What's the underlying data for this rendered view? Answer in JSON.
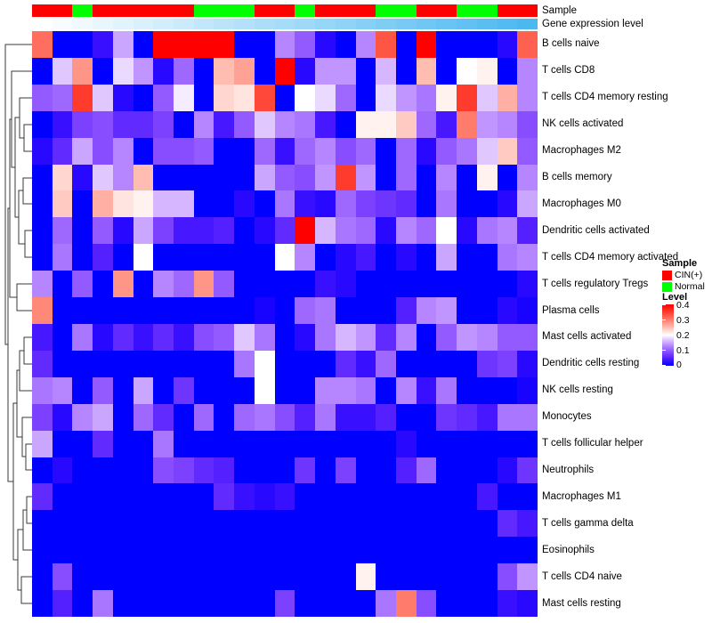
{
  "annotations": {
    "sample_label": "Sample",
    "expression_label": "Gene expression level",
    "sample_colors": {
      "CIN(+)": "#ff0000",
      "Normal": "#00ff00"
    },
    "expression_gradient": {
      "start": "#ffffff",
      "end": "#4bb8f0"
    }
  },
  "legend": {
    "sample_title": "Sample",
    "sample_items": [
      {
        "label": "CIN(+)",
        "color": "#ff0000"
      },
      {
        "label": "Normal",
        "color": "#00ff00"
      }
    ],
    "level_title": "Level",
    "level_ticks": [
      "0.4",
      "0.3",
      "0.2",
      "0.1",
      "0"
    ],
    "level_scale": {
      "low_color": "#0000ff",
      "mid_color": "#ffffff",
      "high_color": "#ff0000",
      "min": 0,
      "max": 0.4
    }
  },
  "chart_data": {
    "type": "heatmap",
    "title": "",
    "value_range": [
      0,
      0.4
    ],
    "n_columns": 25,
    "column_sample": [
      "CIN(+)",
      "CIN(+)",
      "Normal",
      "CIN(+)",
      "CIN(+)",
      "CIN(+)",
      "CIN(+)",
      "CIN(+)",
      "Normal",
      "Normal",
      "Normal",
      "CIN(+)",
      "CIN(+)",
      "Normal",
      "CIN(+)",
      "CIN(+)",
      "CIN(+)",
      "Normal",
      "Normal",
      "CIN(+)",
      "CIN(+)",
      "Normal",
      "Normal",
      "CIN(+)",
      "CIN(+)"
    ],
    "column_expression_level": "increasing left to right, white to sky blue",
    "rows": [
      "B cells naive",
      "T cells CD8",
      "T cells CD4 memory resting",
      "NK cells activated",
      "Macrophages M2",
      "B cells memory",
      "Macrophages M0",
      "Dendritic cells activated",
      "T cells CD4 memory activated",
      "T cells regulatory  Tregs",
      "Plasma cells",
      "Mast cells activated",
      "Dendritic cells resting",
      "NK cells resting",
      "Monocytes",
      "T cells follicular helper",
      "Neutrophils",
      "Macrophages M1",
      "T cells gamma delta",
      "Eosinophils",
      "T cells CD4 naive",
      "Mast cells resting"
    ],
    "values": [
      [
        0.31,
        0,
        0,
        0.03,
        0.15,
        0,
        0.4,
        0.4,
        0.4,
        0.4,
        0,
        0,
        0.13,
        0.1,
        0.02,
        0,
        0.13,
        0.33,
        0,
        0.4,
        0,
        0,
        0,
        0.02,
        0.32
      ],
      [
        0,
        0.17,
        0.28,
        0,
        0.18,
        0.14,
        0.02,
        0.11,
        0,
        0.25,
        0.27,
        0,
        0.4,
        0.02,
        0.14,
        0.14,
        0,
        0.16,
        0,
        0.25,
        0,
        0.2,
        0.21,
        0,
        0.13
      ],
      [
        0.1,
        0.11,
        0.35,
        0.17,
        0.02,
        0,
        0.1,
        0.19,
        0,
        0.23,
        0.22,
        0.34,
        0,
        0.2,
        0.18,
        0.11,
        0,
        0.18,
        0.14,
        0.12,
        0.21,
        0.35,
        0.17,
        0.26,
        0.13
      ],
      [
        0,
        0.03,
        0.08,
        0.09,
        0.06,
        0.06,
        0.08,
        0,
        0.13,
        0.04,
        0.1,
        0.17,
        0.13,
        0.12,
        0.04,
        0,
        0.21,
        0.21,
        0.24,
        0.11,
        0.04,
        0.3,
        0.14,
        0.13,
        0.09
      ],
      [
        0.02,
        0.06,
        0.15,
        0.09,
        0.13,
        0,
        0.09,
        0.09,
        0.1,
        0,
        0,
        0.11,
        0.03,
        0.11,
        0.13,
        0.09,
        0.11,
        0,
        0.11,
        0.02,
        0.1,
        0.12,
        0.17,
        0.24,
        0.1
      ],
      [
        0,
        0.23,
        0.02,
        0.17,
        0.13,
        0.25,
        0,
        0,
        0,
        0,
        0,
        0.15,
        0.1,
        0.09,
        0.14,
        0.35,
        0.14,
        0,
        0.11,
        0,
        0.13,
        0,
        0.21,
        0,
        0.13
      ],
      [
        0,
        0.24,
        0,
        0.26,
        0.22,
        0.21,
        0.16,
        0.16,
        0,
        0,
        0.02,
        0,
        0.12,
        0.03,
        0.02,
        0.11,
        0.08,
        0.07,
        0.06,
        0,
        0.12,
        0,
        0,
        0.02,
        0.15
      ],
      [
        0,
        0.11,
        0,
        0.1,
        0.02,
        0.15,
        0.08,
        0.04,
        0.04,
        0.05,
        0,
        0.02,
        0.06,
        0.4,
        0.16,
        0.12,
        0.11,
        0.02,
        0.13,
        0.11,
        0.2,
        0.02,
        0.12,
        0.13,
        0.05
      ],
      [
        0,
        0.12,
        0,
        0.05,
        0,
        0.2,
        0,
        0,
        0,
        0,
        0,
        0,
        0.2,
        0.13,
        0,
        0.02,
        0.04,
        0,
        0.02,
        0,
        0.15,
        0,
        0,
        0.12,
        0.13
      ],
      [
        0.13,
        0,
        0.1,
        0,
        0.28,
        0,
        0.13,
        0.11,
        0.28,
        0.1,
        0,
        0,
        0,
        0,
        0.03,
        0.02,
        0,
        0,
        0,
        0,
        0,
        0,
        0,
        0,
        0.02
      ],
      [
        0.29,
        0,
        0,
        0,
        0,
        0,
        0,
        0,
        0,
        0,
        0,
        0.01,
        0,
        0.11,
        0.12,
        0,
        0,
        0,
        0.05,
        0.13,
        0.14,
        0,
        0,
        0.02,
        0.01
      ],
      [
        0.04,
        0,
        0.12,
        0.02,
        0.06,
        0.03,
        0.06,
        0.03,
        0.09,
        0.1,
        0.17,
        0.12,
        0,
        0.02,
        0.12,
        0.16,
        0.14,
        0.06,
        0.13,
        0,
        0.1,
        0.14,
        0.13,
        0.1,
        0.1
      ],
      [
        0.06,
        0,
        0,
        0,
        0,
        0,
        0,
        0,
        0,
        0,
        0.12,
        0.2,
        0,
        0,
        0,
        0.06,
        0.03,
        0.11,
        0,
        0,
        0,
        0,
        0.07,
        0.08,
        0.02
      ],
      [
        0.12,
        0.13,
        0,
        0.1,
        0,
        0.15,
        0,
        0.07,
        0,
        0,
        0,
        0.2,
        0,
        0,
        0.13,
        0.13,
        0.12,
        0,
        0.13,
        0.03,
        0.12,
        0,
        0,
        0,
        0.01
      ],
      [
        0.08,
        0.02,
        0.13,
        0.15,
        0,
        0.11,
        0.06,
        0,
        0.11,
        0,
        0.11,
        0.12,
        0.09,
        0.05,
        0.12,
        0.03,
        0.03,
        0.05,
        0,
        0,
        0.07,
        0.06,
        0.04,
        0.12,
        0.12
      ],
      [
        0.15,
        0,
        0,
        0.06,
        0,
        0,
        0.12,
        0,
        0,
        0,
        0,
        0,
        0,
        0,
        0,
        0,
        0,
        0,
        0.02,
        0,
        0,
        0,
        0,
        0,
        0
      ],
      [
        0,
        0.02,
        0,
        0,
        0,
        0,
        0.09,
        0.08,
        0.06,
        0.05,
        0,
        0,
        0,
        0.07,
        0,
        0.08,
        0,
        0,
        0.05,
        0.11,
        0,
        0,
        0,
        0.02,
        0.07
      ],
      [
        0.06,
        0,
        0,
        0,
        0,
        0,
        0,
        0,
        0,
        0.06,
        0.03,
        0.02,
        0.03,
        0,
        0,
        0,
        0,
        0,
        0,
        0,
        0,
        0,
        0.04,
        0,
        0
      ],
      [
        0,
        0,
        0,
        0,
        0,
        0,
        0,
        0,
        0,
        0,
        0,
        0,
        0,
        0,
        0,
        0,
        0,
        0,
        0,
        0,
        0,
        0,
        0,
        0.06,
        0.04
      ],
      [
        0,
        0,
        0,
        0,
        0,
        0,
        0,
        0,
        0,
        0,
        0,
        0,
        0,
        0,
        0,
        0,
        0,
        0,
        0,
        0,
        0,
        0,
        0,
        0,
        0
      ],
      [
        0,
        0.09,
        0,
        0,
        0,
        0,
        0,
        0,
        0,
        0,
        0,
        0,
        0,
        0,
        0,
        0,
        0.21,
        0,
        0,
        0,
        0,
        0,
        0,
        0.09,
        0.14
      ],
      [
        0,
        0.05,
        0,
        0.12,
        0,
        0,
        0,
        0,
        0,
        0,
        0,
        0,
        0.08,
        0,
        0,
        0,
        0,
        0.12,
        0.3,
        0.09,
        0,
        0,
        0,
        0.03,
        0.02
      ]
    ],
    "row_dendrogram": true,
    "legend_position": "right"
  }
}
